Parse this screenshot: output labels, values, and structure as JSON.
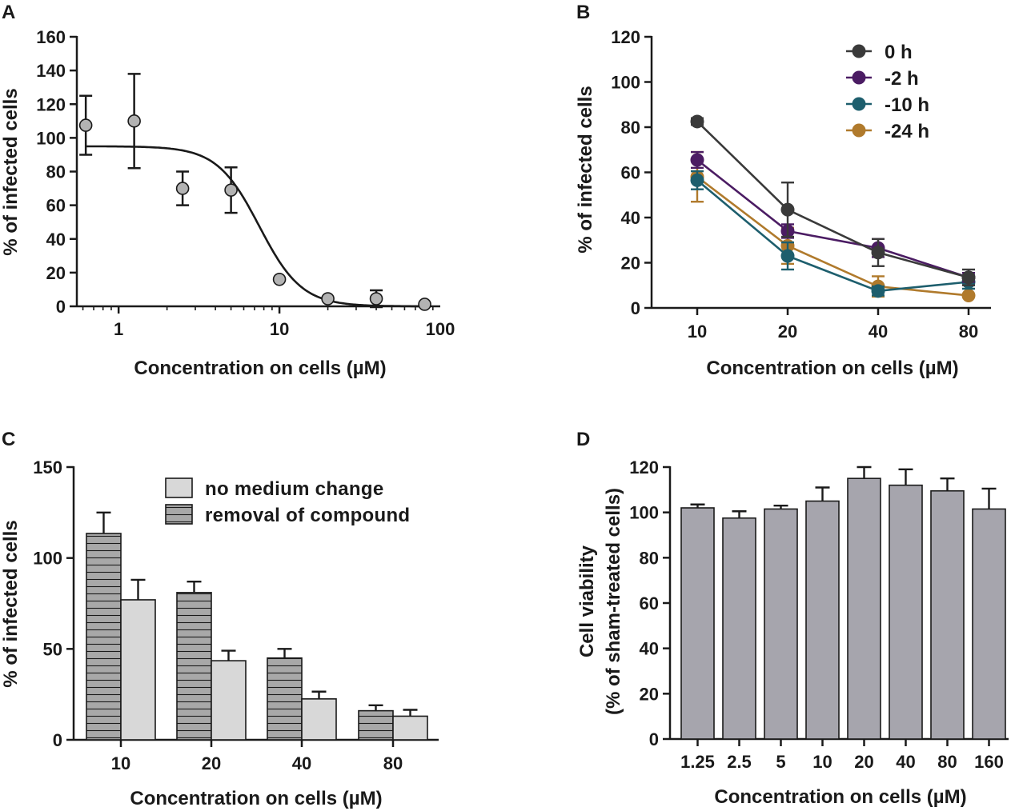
{
  "colors": {
    "axis": "#1a1a1a",
    "grey_point": "#b3b3b3",
    "bar_light": "#d8d8d8",
    "bar_striped_fill": "#a8a8a8",
    "bar_d": "#a6a5ad",
    "s0h": "#3a3a3a",
    "s2h": "#4b1c63",
    "s10h": "#1d5e6d",
    "s24h": "#b07a2c"
  },
  "chart_data": [
    {
      "id": "A",
      "panel_label": "A",
      "type": "scatter",
      "xscale": "log",
      "xlim": [
        0.55,
        100
      ],
      "ylim": [
        0,
        160
      ],
      "xticks": [
        1,
        10,
        100
      ],
      "xtick_labels": [
        "1",
        "10",
        "100"
      ],
      "yticks": [
        0,
        20,
        40,
        60,
        80,
        100,
        120,
        140,
        160
      ],
      "ytick_labels": [
        "0",
        "20",
        "40",
        "60",
        "80",
        "100",
        "120",
        "140",
        "160"
      ],
      "xlabel": "Concentration on cells (µM)",
      "ylabel": "% of infected cells",
      "x": [
        0.625,
        1.25,
        2.5,
        5,
        10,
        20,
        40,
        80
      ],
      "y": [
        107.5,
        110,
        70,
        69,
        16,
        4.5,
        4.5,
        1.2
      ],
      "err": [
        17.5,
        28,
        10,
        13.5,
        0,
        0,
        5,
        0
      ],
      "fit": {
        "model": "four-parameter logistic",
        "top": 95,
        "bottom": 0,
        "ic50": 7.5,
        "hill": 3.3
      }
    },
    {
      "id": "B",
      "panel_label": "B",
      "type": "line",
      "categories": [
        "10",
        "20",
        "40",
        "80"
      ],
      "ylim": [
        0,
        120
      ],
      "yticks": [
        0,
        20,
        40,
        60,
        80,
        100,
        120
      ],
      "ytick_labels": [
        "0",
        "20",
        "40",
        "60",
        "80",
        "100",
        "120"
      ],
      "xlabel": "Concentration on cells (µM)",
      "ylabel": "% of infected cells",
      "legend_position": "top-right",
      "series": [
        {
          "name": "0 h",
          "color": "#3a3a3a",
          "values": [
            82.5,
            43.5,
            24.5,
            13.5
          ],
          "err": [
            1.5,
            12,
            6,
            3.5
          ]
        },
        {
          "name": "-2 h",
          "color": "#4b1c63",
          "values": [
            65.5,
            34,
            26.5,
            13.5
          ],
          "err": [
            3.5,
            3,
            4,
            2
          ]
        },
        {
          "name": "-10 h",
          "color": "#1d5e6d",
          "values": [
            56.5,
            23,
            7.5,
            11.5
          ],
          "err": [
            4,
            6,
            2,
            3
          ]
        },
        {
          "name": "-24 h",
          "color": "#b07a2c",
          "values": [
            58,
            27.5,
            9.5,
            5.5
          ],
          "err": [
            11,
            8,
            4.5,
            0
          ]
        }
      ]
    },
    {
      "id": "C",
      "panel_label": "C",
      "type": "bar",
      "categories": [
        "10",
        "20",
        "40",
        "80"
      ],
      "ylim": [
        0,
        150
      ],
      "yticks": [
        0,
        50,
        100,
        150
      ],
      "ytick_labels": [
        "0",
        "50",
        "100",
        "150"
      ],
      "xlabel": "Concentration on cells (µM)",
      "ylabel": "% of infected cells",
      "legend_position": "top-right",
      "series": [
        {
          "name": "removal of compound",
          "pattern": "horizontal-stripes",
          "values": [
            113.5,
            81,
            45,
            16
          ],
          "err": [
            11.5,
            6,
            5,
            3
          ]
        },
        {
          "name": "no medium change",
          "pattern": "solid-light",
          "values": [
            77,
            43.5,
            22.5,
            13
          ],
          "err": [
            11,
            5.5,
            4,
            3.5
          ]
        }
      ],
      "legend_order": [
        "no medium change",
        "removal of compound"
      ]
    },
    {
      "id": "D",
      "panel_label": "D",
      "type": "bar",
      "categories": [
        "1.25",
        "2.5",
        "5",
        "10",
        "20",
        "40",
        "80",
        "160"
      ],
      "values": [
        102,
        97.5,
        101.5,
        105,
        115,
        112,
        109.5,
        101.5
      ],
      "err": [
        1.5,
        3,
        1.5,
        6,
        5,
        7,
        5.5,
        9
      ],
      "ylim": [
        0,
        120
      ],
      "yticks": [
        0,
        20,
        40,
        60,
        80,
        100,
        120
      ],
      "ytick_labels": [
        "0",
        "20",
        "40",
        "60",
        "80",
        "100",
        "120"
      ],
      "xlabel": "Concentration on cells (µM)",
      "ylabel_line1": "Cell viability",
      "ylabel_line2": "(% of sham-treated cells)"
    }
  ]
}
